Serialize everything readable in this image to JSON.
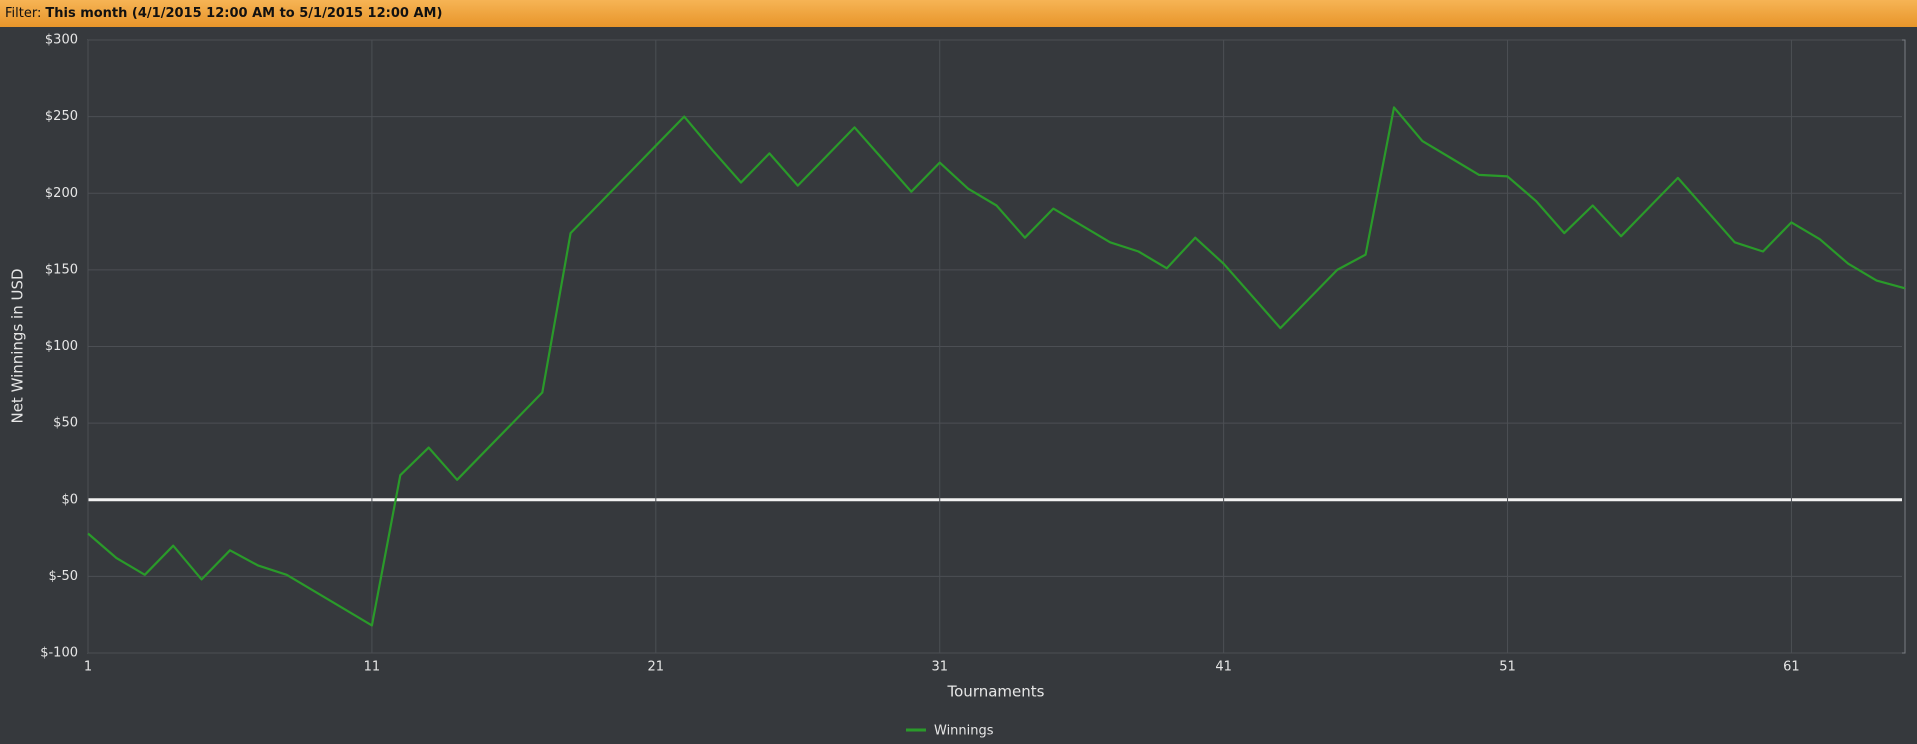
{
  "filter": {
    "label": "Filter:",
    "text": "This month (4/1/2015 12:00 AM to 5/1/2015 12:00 AM)"
  },
  "chart_data": {
    "type": "line",
    "y_label": "Net Winnings in USD",
    "x_label": "Tournaments",
    "x": [
      1,
      2,
      3,
      4,
      5,
      6,
      7,
      8,
      9,
      10,
      11,
      12,
      13,
      14,
      15,
      16,
      17,
      18,
      19,
      20,
      21,
      22,
      23,
      24,
      25,
      26,
      27,
      28,
      29,
      30,
      31,
      32,
      33,
      34,
      35,
      36,
      37,
      38,
      39,
      40,
      41,
      42,
      43,
      44,
      45,
      46,
      47,
      48,
      49,
      50,
      51,
      52,
      53,
      54,
      55,
      56,
      57,
      58,
      59,
      60,
      61,
      62,
      63,
      64,
      65
    ],
    "series": [
      {
        "name": "Winnings",
        "color": "#2a9a2a",
        "values": [
          -22,
          -38,
          -49,
          -30,
          -52,
          -33,
          -43,
          -49,
          -60,
          -71,
          -82,
          16,
          34,
          13,
          32,
          51,
          70,
          174,
          193,
          212,
          231,
          250,
          228,
          207,
          226,
          205,
          224,
          243,
          222,
          201,
          220,
          203,
          192,
          171,
          190,
          179,
          168,
          162,
          151,
          171,
          154,
          133,
          112,
          131,
          150,
          160,
          256,
          234,
          223,
          212,
          211,
          195,
          174,
          192,
          172,
          191,
          210,
          189,
          168,
          162,
          181,
          170,
          154,
          143,
          138
        ]
      }
    ],
    "xlim": [
      1,
      65
    ],
    "xticks": [
      1,
      11,
      21,
      31,
      41,
      51,
      61
    ],
    "ylim": [
      -100,
      300
    ],
    "yticks": [
      {
        "value": -100,
        "label": "$-100"
      },
      {
        "value": -50,
        "label": "$-50"
      },
      {
        "value": 0,
        "label": "$0"
      },
      {
        "value": 50,
        "label": "$50"
      },
      {
        "value": 100,
        "label": "$100"
      },
      {
        "value": 150,
        "label": "$150"
      },
      {
        "value": 200,
        "label": "$200"
      },
      {
        "value": 250,
        "label": "$250"
      },
      {
        "value": 300,
        "label": "$300"
      }
    ],
    "grid": true,
    "zero_line": true,
    "legend": "bottom"
  }
}
